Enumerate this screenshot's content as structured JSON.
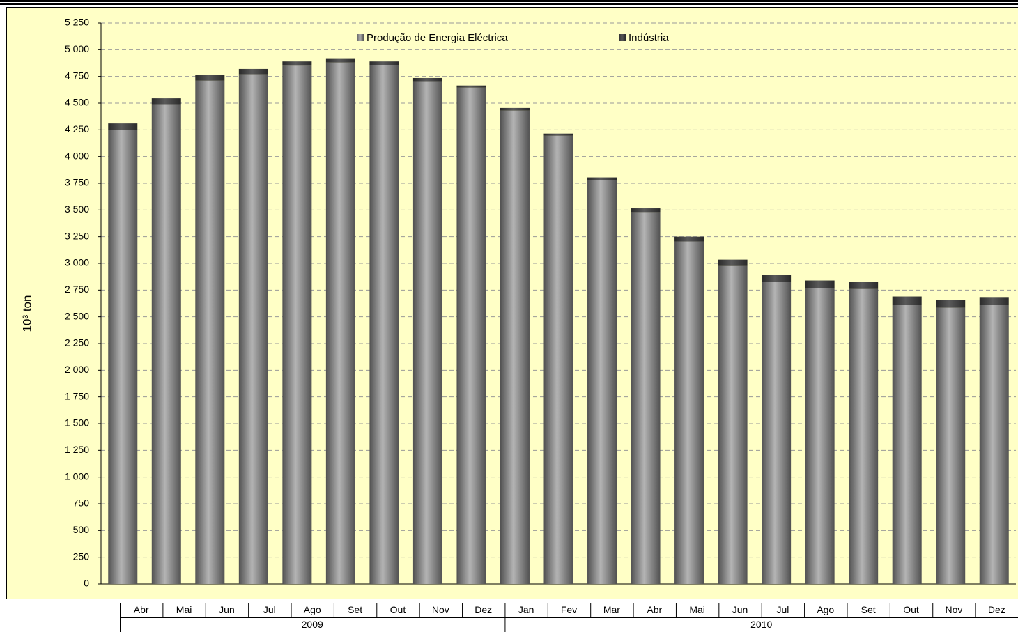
{
  "chart_data": {
    "type": "stacked_bar",
    "y_label": "10³ ton",
    "categories": [
      "Abr",
      "Mai",
      "Jun",
      "Jul",
      "Ago",
      "Set",
      "Out",
      "Nov",
      "Dez",
      "Jan",
      "Fev",
      "Mar",
      "Abr",
      "Mai",
      "Jun",
      "Jul",
      "Ago",
      "Set",
      "Out",
      "Nov",
      "Dez"
    ],
    "groups": [
      {
        "label": "2009",
        "span": 9
      },
      {
        "label": "2010",
        "span": 12
      }
    ],
    "series": [
      {
        "name": "Produção de Energia Eléctrica",
        "color": "#b4b4b4",
        "values": [
          4250,
          4490,
          4710,
          4770,
          4850,
          4880,
          4855,
          4705,
          4645,
          4430,
          4195,
          3780,
          3480,
          3205,
          2975,
          2830,
          2770,
          2760,
          2615,
          2585,
          2610
        ]
      },
      {
        "name": "Indústria",
        "color": "#5a5a5a",
        "values": [
          60,
          55,
          55,
          50,
          40,
          40,
          35,
          30,
          20,
          25,
          20,
          25,
          35,
          45,
          60,
          60,
          70,
          70,
          75,
          75,
          75
        ]
      }
    ],
    "ylim": [
      0,
      5250
    ],
    "yticks": [
      0,
      250,
      500,
      750,
      {
        "value": 1000,
        "label": "1 000"
      },
      {
        "value": 1250,
        "label": "1 250"
      },
      {
        "value": 1500,
        "label": "1 500"
      },
      {
        "value": 1750,
        "label": "1 750"
      },
      {
        "value": 2000,
        "label": "2 000"
      },
      {
        "value": 2250,
        "label": "2 250"
      },
      {
        "value": 2500,
        "label": "2 500"
      },
      {
        "value": 2750,
        "label": "2 750"
      },
      {
        "value": 3000,
        "label": "3 000"
      },
      {
        "value": 3250,
        "label": "3 250"
      },
      {
        "value": 3500,
        "label": "3 500"
      },
      {
        "value": 3750,
        "label": "3 750"
      },
      {
        "value": 4000,
        "label": "4 000"
      },
      {
        "value": 4250,
        "label": "4 250"
      },
      {
        "value": 4500,
        "label": "4 500"
      },
      {
        "value": 4750,
        "label": "4 750"
      },
      {
        "value": 5000,
        "label": "5 000"
      },
      {
        "value": 5250,
        "label": "5 250"
      }
    ],
    "grid": true,
    "legend": "top",
    "background": "#ffffc6"
  }
}
